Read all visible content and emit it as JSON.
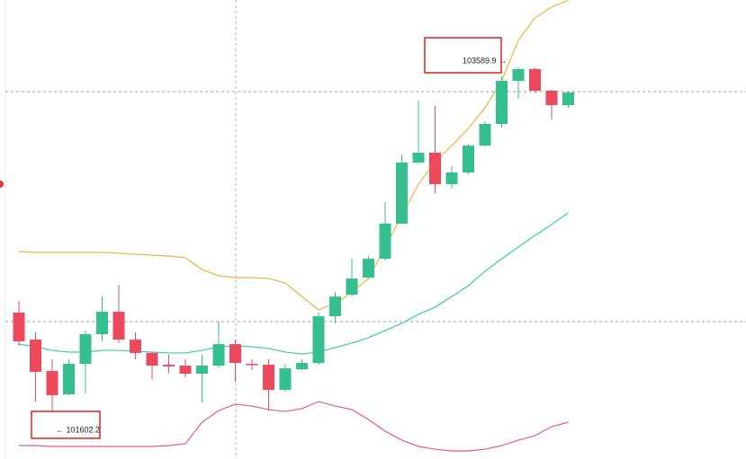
{
  "chart_data": {
    "type": "candlestick",
    "open": [
      102173,
      102017,
      101836,
      101701,
      101877,
      102048,
      102178,
      102017,
      101940,
      101872,
      101867,
      101820,
      101867,
      101991,
      101877,
      101872,
      101727,
      101846,
      101882,
      102152,
      102277,
      102375,
      102484,
      102687,
      103040,
      103097,
      102915,
      102983,
      103138,
      103263,
      103512,
      103580,
      103455,
      103372
    ],
    "high": [
      102241,
      102059,
      101903,
      101903,
      102069,
      102266,
      102334,
      102059,
      101945,
      101929,
      101903,
      101929,
      102121,
      102017,
      101903,
      101903,
      101877,
      101903,
      102173,
      102292,
      102484,
      102500,
      102811,
      103086,
      103398,
      103367,
      103019,
      103149,
      103279,
      103538,
      103589.9,
      103585,
      103460,
      103450
    ],
    "low": [
      101981,
      101659,
      101602.2,
      101696,
      101706,
      102007,
      101997,
      101903,
      101789,
      101825,
      101799,
      101654,
      101851,
      101773,
      101841,
      101607,
      101716,
      101841,
      101872,
      102111,
      102266,
      102370,
      102474,
      102682,
      103034,
      102863,
      102889,
      102972,
      103133,
      103242,
      103408,
      103445,
      103289,
      103356
    ],
    "close": [
      102007,
      101831,
      101696,
      101877,
      102048,
      102178,
      102017,
      101940,
      101867,
      101862,
      101820,
      101867,
      101991,
      101882,
      101872,
      101727,
      101851,
      101882,
      102152,
      102266,
      102370,
      102484,
      102687,
      103040,
      103097,
      102915,
      102983,
      103138,
      103263,
      103512,
      103580,
      103455,
      103372,
      103445
    ],
    "up_color": "#35bf8e",
    "down_color": "#ec4a5c",
    "overlays": [
      {
        "color": "#f0b43c",
        "values": [
          102526,
          102521,
          102521,
          102521,
          102521,
          102521,
          102516,
          102510,
          102505,
          102500,
          102490,
          102422,
          102386,
          102375,
          102375,
          102370,
          102344,
          102266,
          102189,
          102225,
          102292,
          102370,
          102552,
          102734,
          102915,
          103045,
          103138,
          103237,
          103356,
          103512,
          103746,
          103875,
          103938,
          103979
        ]
      },
      {
        "color": "#3cc9b5",
        "values": [
          101991,
          101976,
          101955,
          101945,
          101945,
          101955,
          101955,
          101950,
          101945,
          101940,
          101940,
          101955,
          101976,
          101981,
          101976,
          101966,
          101945,
          101934,
          101945,
          101971,
          101997,
          102028,
          102069,
          102111,
          102163,
          102204,
          102266,
          102329,
          102412,
          102484,
          102552,
          102619,
          102682,
          102749
        ]
      },
      {
        "color": "#e8559f",
        "values": [
          101405,
          101405,
          101400,
          101400,
          101400,
          101400,
          101400,
          101400,
          101400,
          101405,
          101415,
          101540,
          101607,
          101644,
          101633,
          101613,
          101602,
          101618,
          101659,
          101633,
          101613,
          101555,
          101488,
          101436,
          101400,
          101384,
          101374,
          101374,
          101384,
          101405,
          101436,
          101462,
          101514,
          101540
        ]
      }
    ],
    "annotations": [
      {
        "text": "103589.9 →"
      },
      {
        "text": "← 101602.2"
      }
    ]
  }
}
